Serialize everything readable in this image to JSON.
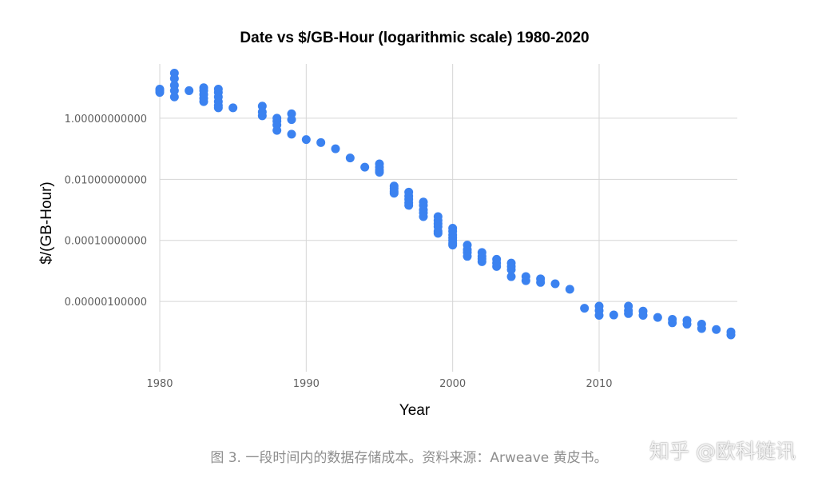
{
  "chart_data": {
    "type": "scatter",
    "title": "Date vs $/GB-Hour (logarithmic scale) 1980-2020",
    "xlabel": "Year",
    "ylabel": "$/(GB-Hour)",
    "y_scale": "log",
    "xlim": [
      1980,
      2019
    ],
    "ylim": [
      5e-09,
      60
    ],
    "x_ticks": [
      1980,
      1990,
      2000,
      2010
    ],
    "x_tick_labels": [
      "1980",
      "1990",
      "2000",
      "2010"
    ],
    "y_ticks": [
      1,
      0.01,
      0.0001,
      1e-06
    ],
    "y_tick_labels": [
      "1.00000000000",
      "0.01000000000",
      "0.00010000000",
      "0.00000100000"
    ],
    "grid": true,
    "point_color": "#3b82f0",
    "points": [
      [
        1980,
        8
      ],
      [
        1980,
        9
      ],
      [
        1980,
        7
      ],
      [
        1981,
        30
      ],
      [
        1981,
        20
      ],
      [
        1981,
        12
      ],
      [
        1981,
        8
      ],
      [
        1981,
        5
      ],
      [
        1982,
        8
      ],
      [
        1983,
        10
      ],
      [
        1983,
        8
      ],
      [
        1983,
        6
      ],
      [
        1983,
        4.5
      ],
      [
        1983,
        3.5
      ],
      [
        1984,
        9
      ],
      [
        1984,
        7
      ],
      [
        1984,
        5
      ],
      [
        1984,
        3.5
      ],
      [
        1984,
        2.6
      ],
      [
        1984,
        2.2
      ],
      [
        1985,
        2.2
      ],
      [
        1987,
        2.5
      ],
      [
        1987,
        1.6
      ],
      [
        1987,
        1.2
      ],
      [
        1988,
        1.0
      ],
      [
        1988,
        0.8
      ],
      [
        1988,
        0.6
      ],
      [
        1988,
        0.4
      ],
      [
        1989,
        1.4
      ],
      [
        1989,
        0.9
      ],
      [
        1989,
        0.3
      ],
      [
        1990,
        0.2
      ],
      [
        1991,
        0.16
      ],
      [
        1992,
        0.1
      ],
      [
        1993,
        0.05
      ],
      [
        1994,
        0.025
      ],
      [
        1995,
        0.032
      ],
      [
        1995,
        0.025
      ],
      [
        1995,
        0.02
      ],
      [
        1995,
        0.017
      ],
      [
        1996,
        0.006
      ],
      [
        1996,
        0.005
      ],
      [
        1996,
        0.004
      ],
      [
        1996,
        0.0035
      ],
      [
        1997,
        0.0038
      ],
      [
        1997,
        0.0028
      ],
      [
        1997,
        0.0022
      ],
      [
        1997,
        0.0017
      ],
      [
        1997,
        0.0014
      ],
      [
        1998,
        0.0018
      ],
      [
        1998,
        0.0014
      ],
      [
        1998,
        0.001
      ],
      [
        1998,
        0.0008
      ],
      [
        1998,
        0.0006
      ],
      [
        1999,
        0.0006
      ],
      [
        1999,
        0.00045
      ],
      [
        1999,
        0.00035
      ],
      [
        1999,
        0.00028
      ],
      [
        1999,
        0.0002
      ],
      [
        1999,
        0.00017
      ],
      [
        2000,
        0.00025
      ],
      [
        2000,
        0.0002
      ],
      [
        2000,
        0.00015
      ],
      [
        2000,
        0.00012
      ],
      [
        2000,
        0.0001
      ],
      [
        2000,
        8e-05
      ],
      [
        2000,
        7e-05
      ],
      [
        2001,
        7e-05
      ],
      [
        2001,
        5e-05
      ],
      [
        2001,
        4e-05
      ],
      [
        2001,
        3e-05
      ],
      [
        2002,
        4e-05
      ],
      [
        2002,
        3e-05
      ],
      [
        2002,
        2.5e-05
      ],
      [
        2002,
        2e-05
      ],
      [
        2003,
        2.4e-05
      ],
      [
        2003,
        1.8e-05
      ],
      [
        2003,
        1.4e-05
      ],
      [
        2004,
        1.8e-05
      ],
      [
        2004,
        1.4e-05
      ],
      [
        2004,
        1.1e-05
      ],
      [
        2004,
        6.5e-06
      ],
      [
        2005,
        6.5e-06
      ],
      [
        2005,
        4.8e-06
      ],
      [
        2006,
        5.5e-06
      ],
      [
        2006,
        4.2e-06
      ],
      [
        2007,
        3.8e-06
      ],
      [
        2008,
        2.5e-06
      ],
      [
        2009,
        6e-07
      ],
      [
        2010,
        7e-07
      ],
      [
        2010,
        5e-07
      ],
      [
        2010,
        3.5e-07
      ],
      [
        2011,
        3.6e-07
      ],
      [
        2012,
        7e-07
      ],
      [
        2012,
        5e-07
      ],
      [
        2012,
        4e-07
      ],
      [
        2013,
        4.8e-07
      ],
      [
        2013,
        3.5e-07
      ],
      [
        2014,
        3e-07
      ],
      [
        2015,
        2.6e-07
      ],
      [
        2015,
        2e-07
      ],
      [
        2016,
        2.4e-07
      ],
      [
        2016,
        1.8e-07
      ],
      [
        2017,
        1.8e-07
      ],
      [
        2017,
        1.3e-07
      ],
      [
        2018,
        1.2e-07
      ],
      [
        2019,
        1e-07
      ],
      [
        2019,
        8e-08
      ]
    ]
  },
  "caption": "图 3. 一段时间内的数据存储成本。资料来源：Arweave 黄皮书。",
  "watermark": "知乎 @欧科链讯"
}
